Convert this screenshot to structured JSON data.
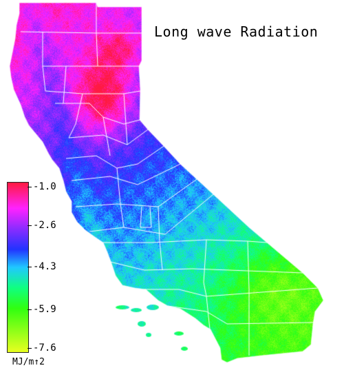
{
  "title": "Long wave Radiation",
  "legend": {
    "labels": [
      "-1.0",
      "-2.6",
      "-4.3",
      "-5.9",
      "-7.6"
    ],
    "unit": "MJ/m↑2",
    "stops": [
      {
        "value": -1.0,
        "color": "#ff1a40"
      },
      {
        "value": -2.0,
        "color": "#ff22ff"
      },
      {
        "value": -2.8,
        "color": "#8a2cff"
      },
      {
        "value": -3.6,
        "color": "#2233ff"
      },
      {
        "value": -4.3,
        "color": "#20c8ff"
      },
      {
        "value": -5.1,
        "color": "#10ff80"
      },
      {
        "value": -5.9,
        "color": "#30ff10"
      },
      {
        "value": -7.6,
        "color": "#e8ff20"
      }
    ]
  },
  "colors": {
    "background": "#ffffff",
    "county_lines": "#ffffff",
    "text": "#000000"
  }
}
